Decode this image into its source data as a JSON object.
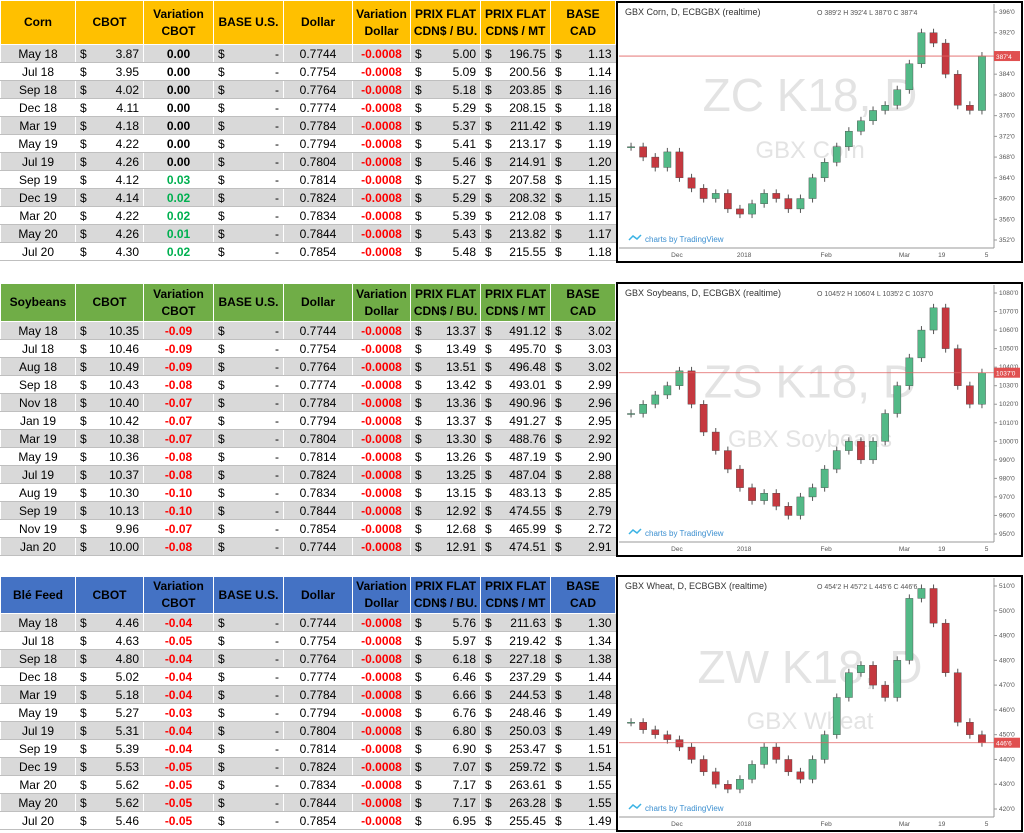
{
  "sections": [
    {
      "table": {
        "header": [
          "Corn",
          "CBOT",
          "Variation CBOT",
          "BASE U.S.",
          "Dollar",
          "Variation Dollar",
          "PRIX FLAT CDN$ / BU.",
          "PRIX FLAT CDN$ / MT",
          "BASE CAD"
        ],
        "header_color": "#ffc000",
        "currency": "$",
        "base_us": "-",
        "rows": [
          [
            "May 18",
            "3.87",
            "0.00",
            "0.7744",
            "-0.0008",
            "5.00",
            "196.75",
            "1.13"
          ],
          [
            "Jul 18",
            "3.95",
            "0.00",
            "0.7754",
            "-0.0008",
            "5.09",
            "200.56",
            "1.14"
          ],
          [
            "Sep 18",
            "4.02",
            "0.00",
            "0.7764",
            "-0.0008",
            "5.18",
            "203.85",
            "1.16"
          ],
          [
            "Dec 18",
            "4.11",
            "0.00",
            "0.7774",
            "-0.0008",
            "5.29",
            "208.15",
            "1.18"
          ],
          [
            "Mar 19",
            "4.18",
            "0.00",
            "0.7784",
            "-0.0008",
            "5.37",
            "211.42",
            "1.19"
          ],
          [
            "May 19",
            "4.22",
            "0.00",
            "0.7794",
            "-0.0008",
            "5.41",
            "213.17",
            "1.19"
          ],
          [
            "Jul 19",
            "4.26",
            "0.00",
            "0.7804",
            "-0.0008",
            "5.46",
            "214.91",
            "1.20"
          ],
          [
            "Sep 19",
            "4.12",
            "0.03",
            "0.7814",
            "-0.0008",
            "5.27",
            "207.58",
            "1.15"
          ],
          [
            "Dec 19",
            "4.14",
            "0.02",
            "0.7824",
            "-0.0008",
            "5.29",
            "208.32",
            "1.15"
          ],
          [
            "Mar 20",
            "4.22",
            "0.02",
            "0.7834",
            "-0.0008",
            "5.39",
            "212.08",
            "1.17"
          ],
          [
            "May 20",
            "4.26",
            "0.01",
            "0.7844",
            "-0.0008",
            "5.43",
            "213.82",
            "1.17"
          ],
          [
            "Jul 20",
            "4.30",
            "0.02",
            "0.7854",
            "-0.0008",
            "5.48",
            "215.55",
            "1.18"
          ]
        ]
      },
      "chart": {
        "title": "GBX Corn, D, ECBGBX (realtime)",
        "ohlc": "O 389'2 H 392'4 L 387'0 C 387'4",
        "watermark": "ZC K18, D",
        "watermark_sub": "GBX Corn",
        "credit": "charts by TradingView",
        "ylim": [
          352,
          396
        ],
        "yticks": [
          {
            "value": 396,
            "label": "396'0"
          },
          {
            "value": 392,
            "label": "392'0"
          },
          {
            "value": 388,
            "label": "388'0"
          },
          {
            "value": 384,
            "label": "384'0"
          },
          {
            "value": 380,
            "label": "380'0"
          },
          {
            "value": 376,
            "label": "376'0"
          },
          {
            "value": 372,
            "label": "372'0"
          },
          {
            "value": 368,
            "label": "368'0"
          },
          {
            "value": 364,
            "label": "364'0"
          },
          {
            "value": 360,
            "label": "360'0"
          },
          {
            "value": 356,
            "label": "356'0"
          },
          {
            "value": 352,
            "label": "352'0"
          }
        ],
        "xticks": [
          "Dec",
          "2018",
          "Feb",
          "Mar",
          "19",
          "5"
        ],
        "last": {
          "value": 387.5,
          "label": "387'4"
        },
        "closes": [
          370,
          368,
          366,
          369,
          364,
          362,
          360,
          361,
          358,
          357,
          359,
          361,
          360,
          358,
          360,
          364,
          367,
          370,
          373,
          375,
          377,
          378,
          381,
          386,
          392,
          390,
          384,
          378,
          377,
          387.5
        ]
      }
    },
    {
      "table": {
        "header": [
          "Soybeans",
          "CBOT",
          "Variation CBOT",
          "BASE U.S.",
          "Dollar",
          "Variation Dollar",
          "PRIX FLAT CDN$ / BU.",
          "PRIX FLAT CDN$ / MT",
          "BASE CAD"
        ],
        "header_color": "#70ad47",
        "currency": "$",
        "base_us": "-",
        "rows": [
          [
            "May 18",
            "10.35",
            "-0.09",
            "0.7744",
            "-0.0008",
            "13.37",
            "491.12",
            "3.02"
          ],
          [
            "Jul 18",
            "10.46",
            "-0.09",
            "0.7754",
            "-0.0008",
            "13.49",
            "495.70",
            "3.03"
          ],
          [
            "Aug 18",
            "10.49",
            "-0.09",
            "0.7764",
            "-0.0008",
            "13.51",
            "496.48",
            "3.02"
          ],
          [
            "Sep 18",
            "10.43",
            "-0.08",
            "0.7774",
            "-0.0008",
            "13.42",
            "493.01",
            "2.99"
          ],
          [
            "Nov 18",
            "10.40",
            "-0.07",
            "0.7784",
            "-0.0008",
            "13.36",
            "490.96",
            "2.96"
          ],
          [
            "Jan 19",
            "10.42",
            "-0.07",
            "0.7794",
            "-0.0008",
            "13.37",
            "491.27",
            "2.95"
          ],
          [
            "Mar 19",
            "10.38",
            "-0.07",
            "0.7804",
            "-0.0008",
            "13.30",
            "488.76",
            "2.92"
          ],
          [
            "May 19",
            "10.36",
            "-0.08",
            "0.7814",
            "-0.0008",
            "13.26",
            "487.19",
            "2.90"
          ],
          [
            "Jul 19",
            "10.37",
            "-0.08",
            "0.7824",
            "-0.0008",
            "13.25",
            "487.04",
            "2.88"
          ],
          [
            "Aug 19",
            "10.30",
            "-0.10",
            "0.7834",
            "-0.0008",
            "13.15",
            "483.13",
            "2.85"
          ],
          [
            "Sep 19",
            "10.13",
            "-0.10",
            "0.7844",
            "-0.0008",
            "12.92",
            "474.55",
            "2.79"
          ],
          [
            "Nov 19",
            "9.96",
            "-0.07",
            "0.7854",
            "-0.0008",
            "12.68",
            "465.99",
            "2.72"
          ],
          [
            "Jan 20",
            "10.00",
            "-0.08",
            "0.7744",
            "-0.0008",
            "12.91",
            "474.51",
            "2.91"
          ]
        ]
      },
      "chart": {
        "title": "GBX Soybeans, D, ECBGBX (realtime)",
        "ohlc": "O 1045'2 H 1060'4 L 1035'2 C 1037'0",
        "watermark": "ZS K18, D",
        "watermark_sub": "GBX Soybeans",
        "credit": "charts by TradingView",
        "ylim": [
          950,
          1080
        ],
        "yticks": [
          {
            "value": 1080,
            "label": "1080'0"
          },
          {
            "value": 1070,
            "label": "1070'0"
          },
          {
            "value": 1060,
            "label": "1060'0"
          },
          {
            "value": 1050,
            "label": "1050'0"
          },
          {
            "value": 1040,
            "label": "1040'0"
          },
          {
            "value": 1030,
            "label": "1030'0"
          },
          {
            "value": 1020,
            "label": "1020'0"
          },
          {
            "value": 1010,
            "label": "1010'0"
          },
          {
            "value": 1000,
            "label": "1000'0"
          },
          {
            "value": 990,
            "label": "990'0"
          },
          {
            "value": 980,
            "label": "980'0"
          },
          {
            "value": 970,
            "label": "970'0"
          },
          {
            "value": 960,
            "label": "960'0"
          },
          {
            "value": 950,
            "label": "950'0"
          }
        ],
        "xticks": [
          "Dec",
          "2018",
          "Feb",
          "Mar",
          "19",
          "5"
        ],
        "last": {
          "value": 1037,
          "label": "1037'0"
        },
        "closes": [
          1015,
          1020,
          1025,
          1030,
          1038,
          1020,
          1005,
          995,
          985,
          975,
          968,
          972,
          965,
          960,
          970,
          975,
          985,
          995,
          1000,
          990,
          1000,
          1015,
          1030,
          1045,
          1060,
          1072,
          1050,
          1030,
          1020,
          1037
        ]
      }
    },
    {
      "table": {
        "header": [
          "Blé Feed",
          "CBOT",
          "Variation CBOT",
          "BASE U.S.",
          "Dollar",
          "Variation Dollar",
          "PRIX FLAT CDN$ / BU.",
          "PRIX FLAT CDN$ / MT",
          "BASE CAD"
        ],
        "header_color": "#4472c4",
        "currency": "$",
        "base_us": "-",
        "rows": [
          [
            "May 18",
            "4.46",
            "-0.04",
            "0.7744",
            "-0.0008",
            "5.76",
            "211.63",
            "1.30"
          ],
          [
            "Jul 18",
            "4.63",
            "-0.05",
            "0.7754",
            "-0.0008",
            "5.97",
            "219.42",
            "1.34"
          ],
          [
            "Sep 18",
            "4.80",
            "-0.04",
            "0.7764",
            "-0.0008",
            "6.18",
            "227.18",
            "1.38"
          ],
          [
            "Dec 18",
            "5.02",
            "-0.04",
            "0.7774",
            "-0.0008",
            "6.46",
            "237.29",
            "1.44"
          ],
          [
            "Mar 19",
            "5.18",
            "-0.04",
            "0.7784",
            "-0.0008",
            "6.66",
            "244.53",
            "1.48"
          ],
          [
            "May 19",
            "5.27",
            "-0.03",
            "0.7794",
            "-0.0008",
            "6.76",
            "248.46",
            "1.49"
          ],
          [
            "Jul 19",
            "5.31",
            "-0.04",
            "0.7804",
            "-0.0008",
            "6.80",
            "250.03",
            "1.49"
          ],
          [
            "Sep 19",
            "5.39",
            "-0.04",
            "0.7814",
            "-0.0008",
            "6.90",
            "253.47",
            "1.51"
          ],
          [
            "Dec 19",
            "5.53",
            "-0.05",
            "0.7824",
            "-0.0008",
            "7.07",
            "259.72",
            "1.54"
          ],
          [
            "Mar 20",
            "5.62",
            "-0.05",
            "0.7834",
            "-0.0008",
            "7.17",
            "263.61",
            "1.55"
          ],
          [
            "May 20",
            "5.62",
            "-0.05",
            "0.7844",
            "-0.0008",
            "7.17",
            "263.28",
            "1.55"
          ],
          [
            "Jul 20",
            "5.46",
            "-0.05",
            "0.7854",
            "-0.0008",
            "6.95",
            "255.45",
            "1.49"
          ]
        ]
      },
      "chart": {
        "title": "GBX Wheat, D, ECBGBX (realtime)",
        "ohlc": "O 454'2 H 457'2 L 445'6 C 446'6",
        "watermark": "ZW K18, D",
        "watermark_sub": "GBX Wheat",
        "credit": "charts by TradingView",
        "ylim": [
          420,
          510
        ],
        "yticks": [
          {
            "value": 510,
            "label": "510'0"
          },
          {
            "value": 500,
            "label": "500'0"
          },
          {
            "value": 490,
            "label": "490'0"
          },
          {
            "value": 480,
            "label": "480'0"
          },
          {
            "value": 470,
            "label": "470'0"
          },
          {
            "value": 460,
            "label": "460'0"
          },
          {
            "value": 450,
            "label": "450'0"
          },
          {
            "value": 440,
            "label": "440'0"
          },
          {
            "value": 430,
            "label": "430'0"
          },
          {
            "value": 420,
            "label": "420'0"
          }
        ],
        "xticks": [
          "Dec",
          "2018",
          "Feb",
          "Mar",
          "19",
          "5"
        ],
        "last": {
          "value": 446.75,
          "label": "446'6"
        },
        "closes": [
          455,
          452,
          450,
          448,
          445,
          440,
          435,
          430,
          428,
          432,
          438,
          445,
          440,
          435,
          432,
          440,
          450,
          465,
          475,
          478,
          470,
          465,
          480,
          505,
          509,
          495,
          475,
          455,
          450,
          446.75
        ]
      }
    }
  ]
}
